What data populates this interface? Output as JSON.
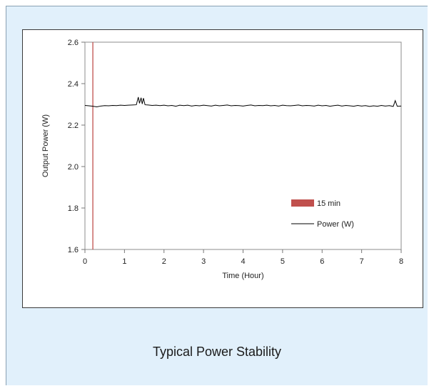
{
  "caption": "Typical Power Stability",
  "chart_data": {
    "type": "line",
    "title": "",
    "xlabel": "Time (Hour)",
    "ylabel": "Output Power (W)",
    "xlim": [
      0,
      8
    ],
    "ylim": [
      1.6,
      2.6
    ],
    "x_ticks": [
      "0",
      "1",
      "2",
      "3",
      "4",
      "5",
      "6",
      "7",
      "8"
    ],
    "y_ticks": [
      "1.6",
      "1.8",
      "2.0",
      "2.2",
      "2.4",
      "2.6"
    ],
    "grid": false,
    "legend_position": "lower-right",
    "series": [
      {
        "name": "Power (W)",
        "color": "#000000",
        "x": [
          0,
          0.1,
          0.2,
          0.3,
          0.4,
          0.5,
          0.6,
          0.7,
          0.8,
          0.9,
          1.0,
          1.1,
          1.2,
          1.3,
          1.35,
          1.38,
          1.42,
          1.45,
          1.48,
          1.52,
          1.6,
          1.7,
          1.8,
          1.9,
          2.0,
          2.1,
          2.2,
          2.3,
          2.4,
          2.5,
          2.6,
          2.7,
          2.8,
          2.9,
          3.0,
          3.1,
          3.2,
          3.3,
          3.4,
          3.5,
          3.6,
          3.7,
          3.8,
          3.9,
          4.0,
          4.1,
          4.2,
          4.3,
          4.4,
          4.5,
          4.6,
          4.7,
          4.8,
          4.9,
          5.0,
          5.1,
          5.2,
          5.3,
          5.4,
          5.5,
          5.6,
          5.7,
          5.8,
          5.9,
          6.0,
          6.1,
          6.2,
          6.3,
          6.4,
          6.5,
          6.6,
          6.7,
          6.8,
          6.9,
          7.0,
          7.1,
          7.2,
          7.3,
          7.4,
          7.5,
          7.6,
          7.7,
          7.8,
          7.85,
          7.9,
          8.0
        ],
        "values": [
          2.295,
          2.293,
          2.291,
          2.288,
          2.292,
          2.294,
          2.293,
          2.295,
          2.294,
          2.296,
          2.295,
          2.296,
          2.297,
          2.298,
          2.335,
          2.305,
          2.332,
          2.302,
          2.33,
          2.298,
          2.297,
          2.295,
          2.296,
          2.294,
          2.296,
          2.293,
          2.295,
          2.291,
          2.296,
          2.294,
          2.296,
          2.292,
          2.295,
          2.293,
          2.296,
          2.294,
          2.292,
          2.296,
          2.293,
          2.295,
          2.297,
          2.293,
          2.295,
          2.294,
          2.292,
          2.295,
          2.297,
          2.293,
          2.295,
          2.294,
          2.296,
          2.293,
          2.295,
          2.292,
          2.296,
          2.294,
          2.293,
          2.295,
          2.297,
          2.293,
          2.295,
          2.294,
          2.292,
          2.296,
          2.293,
          2.295,
          2.291,
          2.294,
          2.296,
          2.292,
          2.295,
          2.293,
          2.291,
          2.295,
          2.292,
          2.294,
          2.29,
          2.293,
          2.291,
          2.295,
          2.292,
          2.294,
          2.29,
          2.318,
          2.291,
          2.292
        ]
      },
      {
        "name": "15 min",
        "color": "#c0504d",
        "type": "vertical-marker",
        "x": 0.2
      }
    ]
  }
}
